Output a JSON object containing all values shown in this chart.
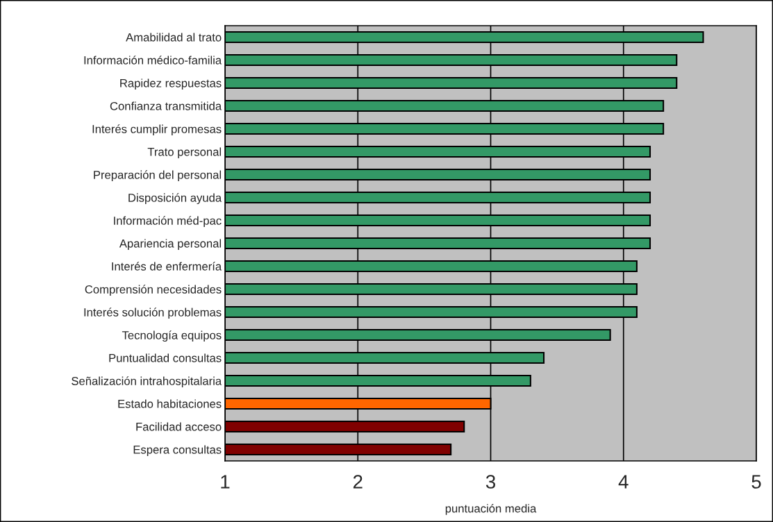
{
  "chart_data": {
    "type": "bar",
    "orientation": "horizontal",
    "xlabel": "puntuación media",
    "categories": [
      "Amabilidad al trato",
      "Información médico-familia",
      "Rapidez respuestas",
      "Confianza transmitida",
      "Interés cumplir promesas",
      "Trato personal",
      "Preparación del personal",
      "Disposición ayuda",
      "Información méd-pac",
      "Apariencia personal",
      "Interés de enfermería",
      "Comprensión necesidades",
      "Interés solución problemas",
      "Tecnología equipos",
      "Puntualidad consultas",
      "Señalización intrahospitalaria",
      "Estado habitaciones",
      "Facilidad acceso",
      "Espera consultas"
    ],
    "values": [
      4.6,
      4.4,
      4.4,
      4.3,
      4.3,
      4.2,
      4.2,
      4.2,
      4.2,
      4.2,
      4.1,
      4.1,
      4.1,
      3.9,
      3.4,
      3.3,
      3.0,
      2.8,
      2.7
    ],
    "colors": [
      "#339966",
      "#339966",
      "#339966",
      "#339966",
      "#339966",
      "#339966",
      "#339966",
      "#339966",
      "#339966",
      "#339966",
      "#339966",
      "#339966",
      "#339966",
      "#339966",
      "#339966",
      "#339966",
      "#ff6600",
      "#800000",
      "#800000"
    ],
    "xlim": [
      1,
      5
    ],
    "xticks": [
      1,
      2,
      3,
      4,
      5
    ],
    "grid": "x"
  }
}
